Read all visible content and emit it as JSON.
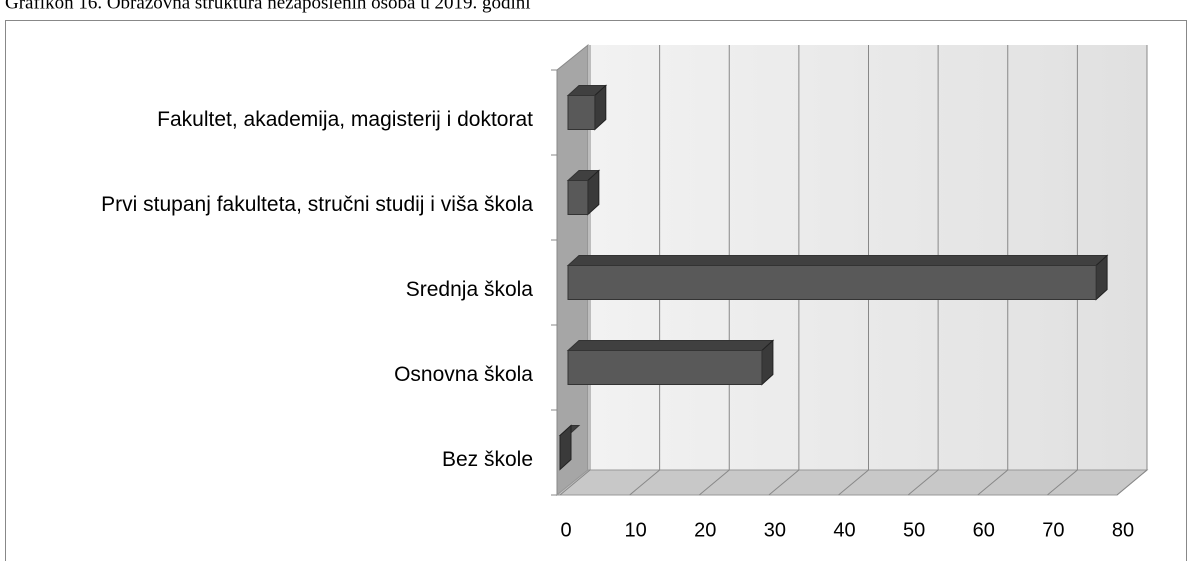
{
  "chart_data": {
    "type": "bar3d",
    "orientation": "horizontal",
    "title": "Grafikon 16. Obrazovna struktura nezaposlenih osoba u 2019. godini",
    "categories": [
      "Bez škole",
      "Osnovna škola",
      "Srednja škola",
      "Prvi stupanj fakulteta, stručni studij i viša škola",
      "Fakultet, akademija, magisterij i doktorat"
    ],
    "values": [
      0,
      29,
      77,
      4,
      5
    ],
    "color": "#595959",
    "xlim": [
      0,
      80
    ],
    "xticks": [
      0,
      10,
      20,
      30,
      40,
      50,
      60,
      70,
      80
    ],
    "grid": true
  }
}
